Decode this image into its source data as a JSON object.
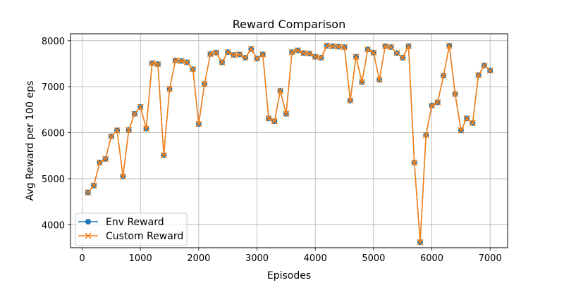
{
  "chart_data": {
    "type": "line",
    "title": "Reward Comparison",
    "xlabel": "Episodes",
    "ylabel": "Avg Reward per 100 eps",
    "xlim": [
      -200,
      7300
    ],
    "ylim": [
      3500,
      8150
    ],
    "xticks": [
      0,
      1000,
      2000,
      3000,
      4000,
      5000,
      6000,
      7000
    ],
    "yticks": [
      4000,
      5000,
      6000,
      7000,
      8000
    ],
    "grid": true,
    "legend_position": "lower left",
    "x": [
      100,
      200,
      300,
      400,
      500,
      600,
      700,
      800,
      900,
      1000,
      1100,
      1200,
      1300,
      1400,
      1500,
      1600,
      1700,
      1800,
      1900,
      2000,
      2100,
      2200,
      2300,
      2400,
      2500,
      2600,
      2700,
      2800,
      2900,
      3000,
      3100,
      3200,
      3300,
      3400,
      3500,
      3600,
      3700,
      3800,
      3900,
      4000,
      4100,
      4200,
      4300,
      4400,
      4500,
      4600,
      4700,
      4800,
      4900,
      5000,
      5100,
      5200,
      5300,
      5400,
      5500,
      5600,
      5700,
      5800,
      5900,
      6000,
      6100,
      6200,
      6300,
      6400,
      6500,
      6600,
      6700,
      6800,
      6900,
      7000
    ],
    "series": [
      {
        "name": "Env Reward",
        "color": "#1f77b4",
        "marker": "circle",
        "values": [
          4700,
          4850,
          5350,
          5430,
          5920,
          6050,
          5050,
          6060,
          6410,
          6560,
          6090,
          7510,
          7490,
          5510,
          6950,
          7570,
          7560,
          7530,
          7380,
          6190,
          7060,
          7710,
          7740,
          7530,
          7750,
          7690,
          7700,
          7630,
          7820,
          7610,
          7700,
          6310,
          6250,
          6910,
          6410,
          7750,
          7790,
          7730,
          7720,
          7650,
          7630,
          7890,
          7880,
          7870,
          7860,
          6700,
          7650,
          7100,
          7810,
          7740,
          7150,
          7880,
          7860,
          7730,
          7630,
          7880,
          5350,
          3620,
          5950,
          6590,
          6660,
          7240,
          7890,
          6840,
          6050,
          6310,
          6210,
          7250,
          7460,
          7350
        ]
      },
      {
        "name": "Custom Reward",
        "color": "#ff7f0e",
        "marker": "x",
        "values": [
          4700,
          4850,
          5350,
          5430,
          5920,
          6050,
          5050,
          6060,
          6410,
          6560,
          6090,
          7510,
          7490,
          5510,
          6950,
          7570,
          7560,
          7530,
          7380,
          6190,
          7060,
          7710,
          7740,
          7530,
          7750,
          7690,
          7700,
          7630,
          7820,
          7610,
          7700,
          6310,
          6250,
          6910,
          6410,
          7750,
          7790,
          7730,
          7720,
          7650,
          7630,
          7890,
          7880,
          7870,
          7860,
          6700,
          7650,
          7100,
          7810,
          7740,
          7150,
          7880,
          7860,
          7730,
          7630,
          7880,
          5350,
          3620,
          5950,
          6590,
          6660,
          7240,
          7890,
          6840,
          6050,
          6310,
          6210,
          7250,
          7460,
          7350
        ]
      }
    ]
  }
}
